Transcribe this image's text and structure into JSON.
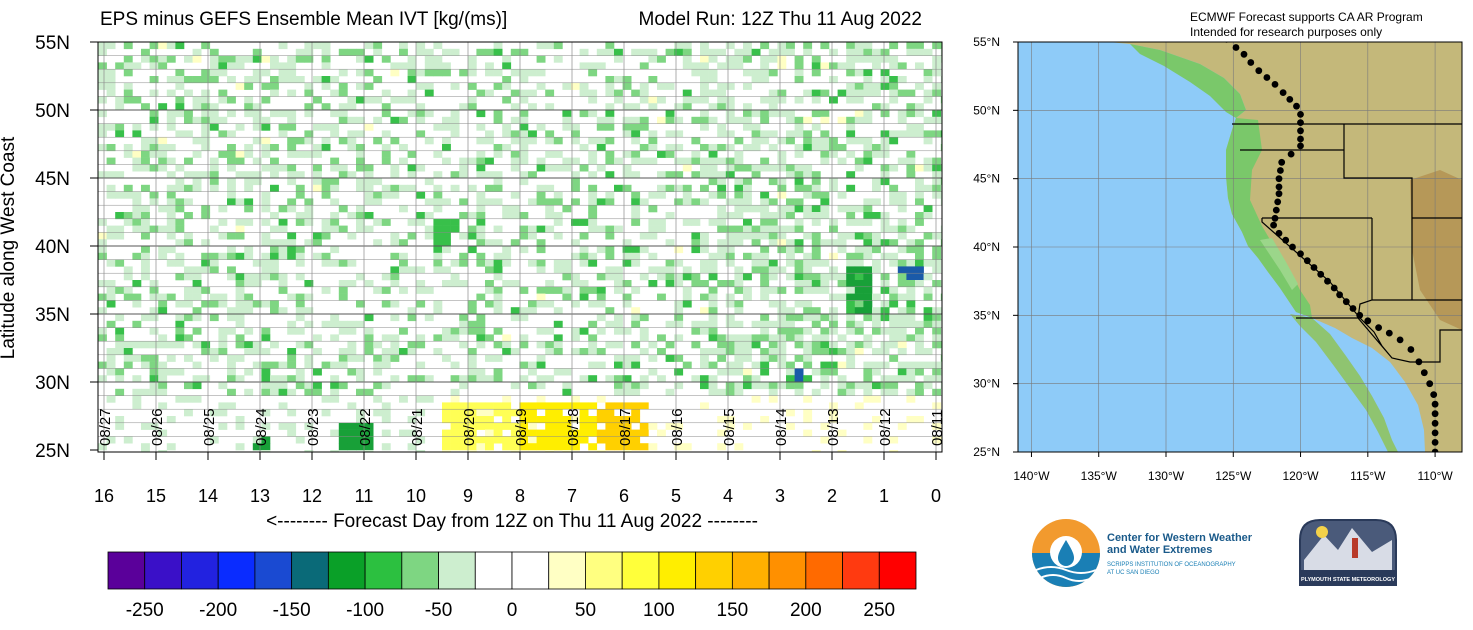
{
  "hovmoller": {
    "title_left": "EPS minus GEFS Ensemble Mean IVT [kg/(ms)]",
    "title_right": "Model Run: 12Z Thu 11 Aug 2022",
    "ylabel": "Latitude along West Coast",
    "xlabel": "<-------- Forecast Day from 12Z on Thu 11 Aug 2022 --------",
    "lat_ticks": [
      "55N",
      "50N",
      "45N",
      "40N",
      "35N",
      "30N",
      "25N"
    ],
    "lat_values": [
      55,
      50,
      45,
      40,
      35,
      30,
      25
    ],
    "day_ticks": [
      "16",
      "15",
      "14",
      "13",
      "12",
      "11",
      "10",
      "9",
      "8",
      "7",
      "6",
      "5",
      "4",
      "3",
      "2",
      "1",
      "0"
    ],
    "date_labels": [
      "08/27",
      "08/26",
      "08/25",
      "08/24",
      "08/23",
      "08/22",
      "08/21",
      "08/20",
      "08/19",
      "08/18",
      "08/17",
      "08/16",
      "08/15",
      "08/14",
      "08/13",
      "08/12",
      "08/11"
    ]
  },
  "colorbar": {
    "labels": [
      "-250",
      "-200",
      "-150",
      "-100",
      "-50",
      "0",
      "50",
      "100",
      "150",
      "200",
      "250"
    ],
    "colors": [
      "#5a009a",
      "#3a10c8",
      "#2222e0",
      "#0a2cff",
      "#1a4ad2",
      "#0a6a78",
      "#0aa028",
      "#2cc040",
      "#7ed682",
      "#cdeecf",
      "#ffffff",
      "#ffffff",
      "#ffffc4",
      "#ffff80",
      "#ffff3a",
      "#ffee00",
      "#ffd000",
      "#ffb000",
      "#ff9000",
      "#ff6a00",
      "#ff3a10",
      "#ff0000"
    ]
  },
  "map": {
    "note_line1": "ECMWF Forecast supports CA AR Program",
    "note_line2": "Intended for research purposes only",
    "lat_labels": [
      "55°N",
      "50°N",
      "45°N",
      "40°N",
      "35°N",
      "30°N",
      "25°N"
    ],
    "lon_labels": [
      "140°W",
      "135°W",
      "130°W",
      "125°W",
      "120°W",
      "115°W",
      "110°W"
    ],
    "ocean_color": "#8ecbf8"
  },
  "logos": {
    "cw3e_line1": "Center for Western Weather",
    "cw3e_line2": "and Water Extremes",
    "cw3e_line3": "SCRIPPS INSTITUTION OF OCEANOGRAPHY",
    "cw3e_line4": "AT UC SAN DIEGO",
    "psu_text": "PLYMOUTH STATE METEOROLOGY"
  },
  "chart_data": {
    "type": "heatmap",
    "title": "EPS minus GEFS Ensemble Mean IVT [kg/(ms)]",
    "subtitle": "Model Run: 12Z Thu 11 Aug 2022",
    "xlabel": "<-------- Forecast Day from 12Z on Thu 11 Aug 2022 --------",
    "ylabel": "Latitude along West Coast",
    "xlim": [
      16,
      0
    ],
    "ylim": [
      25,
      55
    ],
    "levels": [
      -250,
      -200,
      -150,
      -100,
      -50,
      0,
      50,
      100,
      150,
      200,
      250
    ],
    "regions": [
      {
        "day": [
          8.0,
          6.5
        ],
        "lat": [
          25,
          28.5
        ],
        "value": 100
      },
      {
        "day": [
          6.5,
          5.5
        ],
        "lat": [
          25,
          28.5
        ],
        "value": 150
      },
      {
        "day": [
          9.5,
          8.0
        ],
        "lat": [
          25,
          28.5
        ],
        "value": 75
      },
      {
        "day": [
          11.5,
          10.8
        ],
        "lat": [
          25,
          27
        ],
        "value": -100
      },
      {
        "day": [
          13.2,
          12.8
        ],
        "lat": [
          25,
          26
        ],
        "value": -100
      },
      {
        "day": [
          9.6,
          9.2
        ],
        "lat": [
          40,
          42
        ],
        "value": -75
      },
      {
        "day": [
          1.8,
          1.2
        ],
        "lat": [
          35,
          38.5
        ],
        "value": -90
      },
      {
        "day": [
          0.7,
          0.3
        ],
        "lat": [
          37.5,
          38.5
        ],
        "value": -150
      },
      {
        "day": [
          2.7,
          2.5
        ],
        "lat": [
          30,
          31
        ],
        "value": -150
      }
    ]
  }
}
